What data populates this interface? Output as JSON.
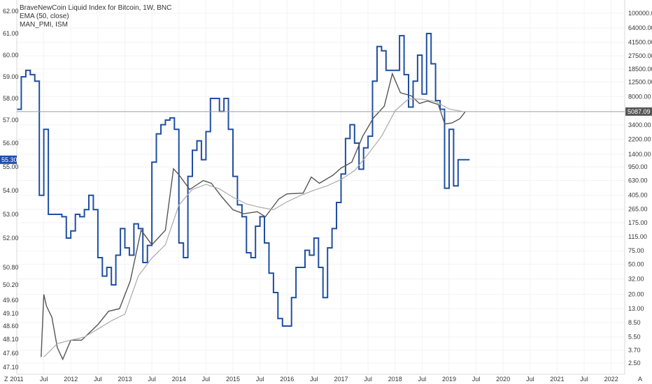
{
  "legend": {
    "title": "BraveNewCoin Liquid Index for Bitcoin, 1W, BNC",
    "ema": "EMA (50, close)",
    "indicator": "MAN_PMI, ISM"
  },
  "left_axis_labels": [
    "62.00",
    "61.00",
    "60.00",
    "59.00",
    "58.00",
    "57.00",
    "56.00",
    "55.00",
    "54.00",
    "53.00",
    "52.00",
    "50.80",
    "50.20",
    "49.60",
    "49.10",
    "48.60",
    "48.10",
    "47.60",
    "47.10"
  ],
  "right_axis_labels": [
    "100000.00",
    "64000.00",
    "41500.00",
    "27500.00",
    "18500.00",
    "12500.00",
    "8000.00",
    "3400.00",
    "2200.00",
    "1400.00",
    "950.00",
    "630.00",
    "405.00",
    "265.00",
    "175.00",
    "115.00",
    "75.00",
    "50.00",
    "32.00",
    "20.00",
    "13.00",
    "8.50",
    "5.50",
    "3.70",
    "2.50"
  ],
  "x_axis_labels": [
    "2011",
    "Jul",
    "2012",
    "Jul",
    "2013",
    "Jul",
    "2014",
    "Jul",
    "2015",
    "Jul",
    "2016",
    "Jul",
    "2017",
    "Jul",
    "2018",
    "Jul",
    "2019",
    "Jul",
    "2020",
    "Jul",
    "2021",
    "Jul",
    "2022"
  ],
  "price_tag": "5087.09",
  "pmi_tag": "55.30",
  "corner_labels": {
    "left": "Z",
    "right": "A"
  },
  "colors": {
    "pmi": "#1f4ea3",
    "price": "#555555",
    "ema": "#aaaaaa",
    "price_line": "#9e9e9e",
    "tag_pmi": "#1f4ea3",
    "tag_price": "#555555"
  },
  "chart_data": {
    "type": "line",
    "title": "BraveNewCoin Liquid Index for Bitcoin, 1W, BNC",
    "y_left_scale": "linear",
    "y_right_scale": "log",
    "y_right_range": [
      2,
      130000
    ],
    "x_range": [
      "2011-01",
      "2022-03"
    ],
    "series": [
      {
        "name": "MAN_PMI, ISM",
        "axis": "left",
        "step": true,
        "x": [
          "2011-01",
          "2011-02",
          "2011-03",
          "2011-04",
          "2011-05",
          "2011-06",
          "2011-07",
          "2011-08",
          "2011-09",
          "2011-10",
          "2011-11",
          "2011-12",
          "2012-01",
          "2012-02",
          "2012-03",
          "2012-04",
          "2012-05",
          "2012-06",
          "2012-07",
          "2012-08",
          "2012-09",
          "2012-10",
          "2012-11",
          "2012-12",
          "2013-01",
          "2013-02",
          "2013-03",
          "2013-04",
          "2013-05",
          "2013-06",
          "2013-07",
          "2013-08",
          "2013-09",
          "2013-10",
          "2013-11",
          "2013-12",
          "2014-01",
          "2014-02",
          "2014-03",
          "2014-04",
          "2014-05",
          "2014-06",
          "2014-07",
          "2014-08",
          "2014-09",
          "2014-10",
          "2014-11",
          "2014-12",
          "2015-01",
          "2015-02",
          "2015-03",
          "2015-04",
          "2015-05",
          "2015-06",
          "2015-07",
          "2015-08",
          "2015-09",
          "2015-10",
          "2015-11",
          "2015-12",
          "2016-01",
          "2016-02",
          "2016-03",
          "2016-04",
          "2016-05",
          "2016-06",
          "2016-07",
          "2016-08",
          "2016-09",
          "2016-10",
          "2016-11",
          "2016-12",
          "2017-01",
          "2017-02",
          "2017-03",
          "2017-04",
          "2017-05",
          "2017-06",
          "2017-07",
          "2017-08",
          "2017-09",
          "2017-10",
          "2017-11",
          "2017-12",
          "2018-01",
          "2018-02",
          "2018-03",
          "2018-04",
          "2018-05",
          "2018-06",
          "2018-07",
          "2018-08",
          "2018-09",
          "2018-10",
          "2018-11",
          "2018-12",
          "2019-01",
          "2019-02",
          "2019-03",
          "2019-04"
        ],
        "y": [
          57.5,
          59.0,
          59.3,
          59.1,
          58.8,
          53.8,
          56.6,
          53.0,
          53.0,
          53.0,
          52.9,
          52.0,
          52.3,
          53.0,
          52.9,
          53.2,
          53.8,
          53.2,
          51.2,
          50.5,
          50.8,
          50.2,
          51.3,
          52.4,
          51.6,
          51.3,
          52.6,
          52.4,
          51.0,
          51.7,
          55.2,
          56.4,
          56.8,
          57.0,
          57.1,
          56.6,
          51.8,
          51.2,
          54.6,
          55.7,
          56.1,
          55.3,
          56.5,
          58.0,
          58.0,
          57.4,
          58.0,
          56.6,
          54.6,
          53.4,
          52.9,
          51.4,
          51.2,
          52.5,
          52.9,
          51.8,
          50.6,
          49.9,
          48.9,
          48.6,
          48.6,
          49.7,
          50.8,
          50.8,
          51.5,
          51.3,
          52.0,
          50.8,
          49.7,
          51.6,
          52.4,
          53.5,
          54.7,
          56.2,
          56.8,
          56.0,
          54.9,
          55.8,
          56.3,
          58.8,
          60.4,
          60.2,
          59.3,
          59.3,
          59.3,
          60.9,
          59.1,
          57.6,
          58.8,
          60.0,
          58.2,
          61.0,
          59.6,
          57.9,
          57.5,
          54.1,
          56.6,
          54.2,
          55.3,
          55.3
        ]
      },
      {
        "name": "EMA (50, close)",
        "axis": "right",
        "x": [
          "2011-07",
          "2011-10",
          "2012-01",
          "2012-04",
          "2012-07",
          "2012-10",
          "2013-01",
          "2013-04",
          "2013-07",
          "2013-10",
          "2014-01",
          "2014-04",
          "2014-07",
          "2014-10",
          "2015-01",
          "2015-04",
          "2015-07",
          "2015-10",
          "2016-01",
          "2016-04",
          "2016-07",
          "2016-10",
          "2017-01",
          "2017-04",
          "2017-07",
          "2017-10",
          "2018-01",
          "2018-04",
          "2018-07",
          "2018-10",
          "2019-01",
          "2019-04"
        ],
        "y": [
          3.0,
          4.5,
          5.0,
          5.5,
          7.0,
          9.0,
          11.0,
          35,
          60,
          90,
          300,
          480,
          560,
          490,
          380,
          310,
          280,
          260,
          330,
          400,
          470,
          540,
          650,
          850,
          1400,
          2400,
          5200,
          7500,
          7400,
          6900,
          5500,
          5100
        ]
      }
    ]
  }
}
